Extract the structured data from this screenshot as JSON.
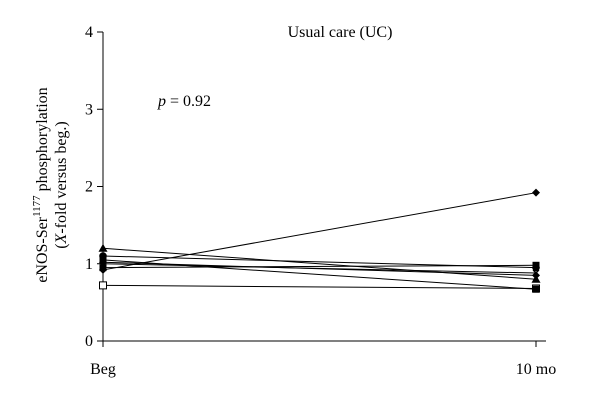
{
  "chart_data": {
    "type": "line",
    "title": "Usual care (UC)",
    "annotation": {
      "italic": "p",
      "rest": " = 0.92"
    },
    "ylabel": {
      "line1_prefix": "eNOS-Ser",
      "line1_sup": "1177",
      "line1_suffix": " phosphorylation",
      "line2_open": "(",
      "line2_italic": "X",
      "line2_rest": "-fold versus beg.)"
    },
    "xlabel": "",
    "categories": [
      "Beg",
      "10 mo"
    ],
    "ylim": [
      0,
      4
    ],
    "yticks": [
      0,
      1,
      2,
      3,
      4
    ],
    "grid": false,
    "series": [
      {
        "marker": "diamond-filled",
        "values": [
          0.92,
          1.92
        ]
      },
      {
        "marker": "square-open",
        "values": [
          0.72,
          0.68
        ]
      },
      {
        "marker": "triangle-filled",
        "values": [
          1.2,
          0.8
        ]
      },
      {
        "marker": "circle-filled",
        "values": [
          1.1,
          0.95
        ]
      },
      {
        "marker": "square-filled",
        "values": [
          1.05,
          0.67
        ]
      },
      {
        "marker": "square-filled",
        "values": [
          0.95,
          0.98
        ]
      },
      {
        "marker": "x",
        "values": [
          1.0,
          0.88
        ]
      },
      {
        "marker": "diamond-filled",
        "values": [
          1.02,
          0.85
        ]
      }
    ]
  }
}
